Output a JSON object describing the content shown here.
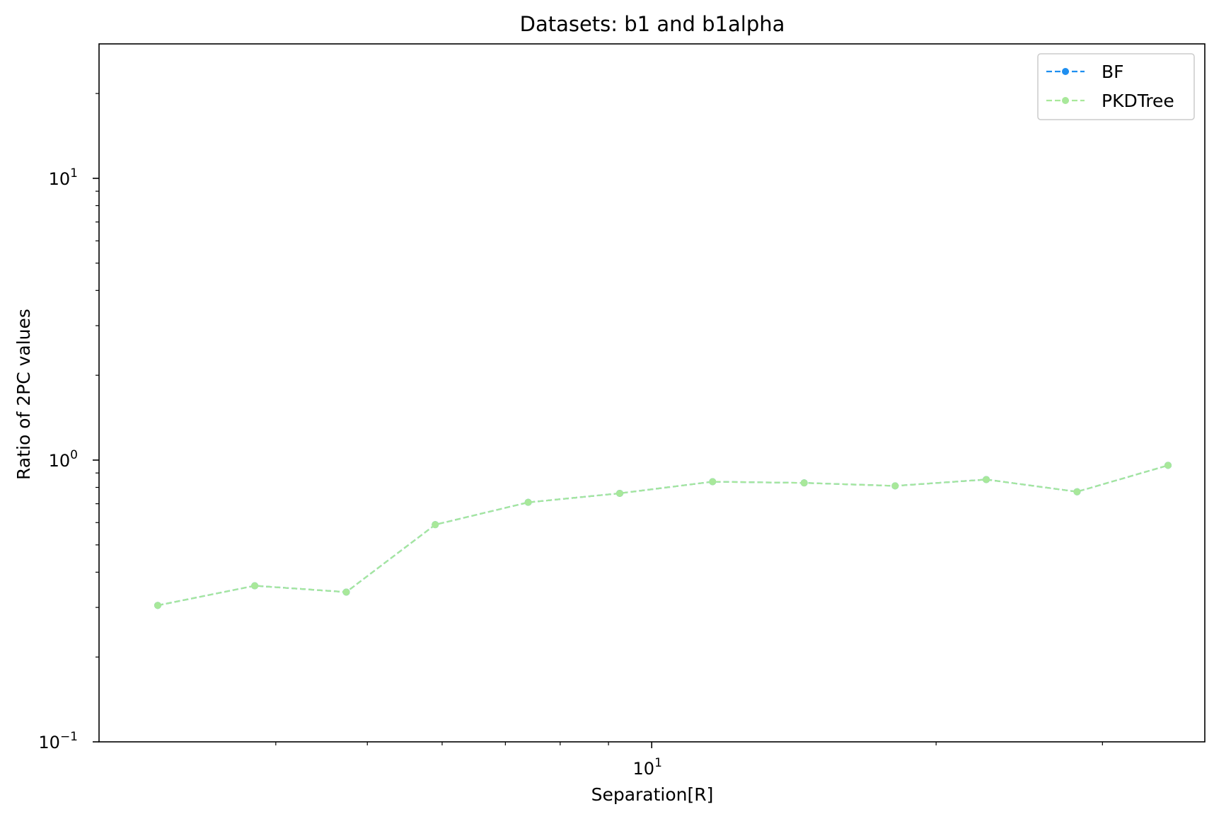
{
  "chart_data": {
    "type": "line",
    "title": "Datasets: b1  and  b1alpha",
    "xlabel": "Separation[R]",
    "ylabel": "Ratio of 2PC values",
    "x_scale": "log",
    "y_scale": "log",
    "xlim": [
      2.6,
      38.5
    ],
    "ylim": [
      0.1,
      30
    ],
    "x_major_ticks": [
      {
        "value": 10,
        "base": "10",
        "exp": "1"
      }
    ],
    "x_minor_ticks": [
      4,
      5,
      6,
      7,
      8,
      9,
      20,
      30
    ],
    "y_major_ticks": [
      {
        "value": 0.1,
        "base": "10",
        "exp": "−1"
      },
      {
        "value": 1,
        "base": "10",
        "exp": "0"
      },
      {
        "value": 10,
        "base": "10",
        "exp": "1"
      }
    ],
    "y_minor_ticks": [
      0.2,
      0.3,
      0.4,
      0.5,
      0.6,
      0.7,
      0.8,
      0.9,
      2,
      3,
      4,
      5,
      6,
      7,
      8,
      9,
      20
    ],
    "grid": false,
    "legend_position": "top-right",
    "x": [
      3.0,
      3.8,
      4.75,
      5.9,
      7.4,
      9.25,
      11.6,
      14.5,
      18.1,
      22.6,
      28.2,
      35.2
    ],
    "series": [
      {
        "name": "BF",
        "color": "#1f8ff0",
        "style": "dashed",
        "marker": "circle",
        "values": [
          0.305,
          0.358,
          0.34,
          0.59,
          0.708,
          0.762,
          0.838,
          0.83,
          0.81,
          0.853,
          0.772,
          0.958
        ]
      },
      {
        "name": "PKDTree",
        "color": "#a8e89a",
        "style": "dashed",
        "marker": "circle",
        "values": [
          0.305,
          0.358,
          0.34,
          0.59,
          0.708,
          0.762,
          0.838,
          0.83,
          0.81,
          0.853,
          0.772,
          0.958
        ]
      }
    ]
  }
}
